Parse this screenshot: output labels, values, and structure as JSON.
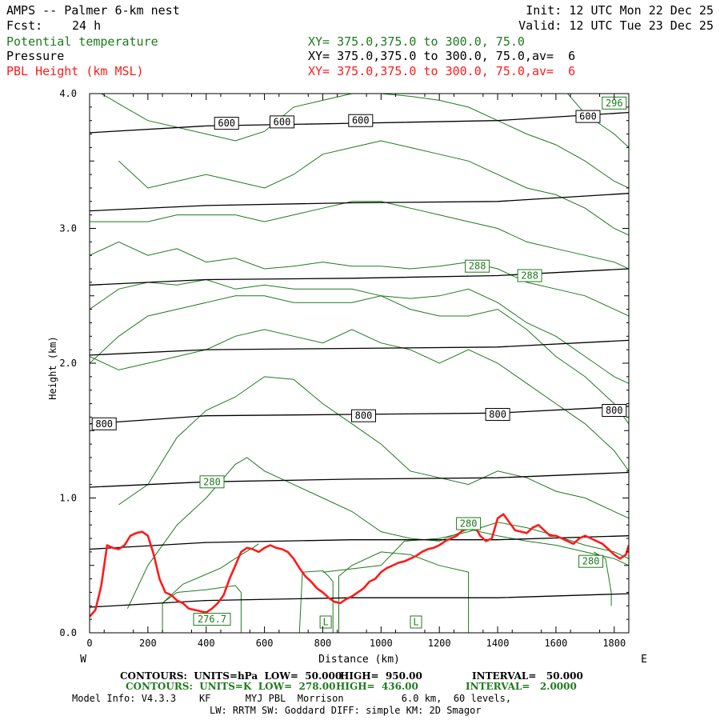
{
  "header": {
    "model": "AMPS -- Palmer 6-km nest",
    "fcst_label": "Fcst:",
    "fcst_value": "24 h",
    "init": "Init: 12 UTC Mon 22 Dec 25",
    "valid": "Valid: 12 UTC Tue 23 Dec 25",
    "field1": "Potential temperature",
    "field2": "Pressure",
    "field3": "PBL Height (km MSL)",
    "xy1": "XY= 375.0,375.0 to 300.0, 75.0",
    "xy2": "XY= 375.0,375.0 to 300.0, 75.0,av=  6",
    "xy3": "XY= 375.0,375.0 to 300.0, 75.0,av=  6"
  },
  "colors": {
    "theta": "#1e7a1e",
    "pressure": "#000000",
    "pbl": "#ff1a1a"
  },
  "chart_data": {
    "type": "line",
    "xlabel": "Distance (km)",
    "ylabel": "Height (km)",
    "xlim": [
      0,
      1850
    ],
    "ylim": [
      0,
      4.0
    ],
    "x_ticks": [
      0,
      200,
      400,
      600,
      800,
      1000,
      1200,
      1400,
      1600,
      1800
    ],
    "y_ticks": [
      0.0,
      1.0,
      2.0,
      3.0,
      4.0
    ],
    "y_tick_labels": [
      "0.0",
      "1.0",
      "2.0",
      "3.0",
      "4.0"
    ],
    "left_end": "W",
    "right_end": "E",
    "pressure_contours": [
      {
        "x": [
          0,
          400,
          900,
          1400,
          1850
        ],
        "y": [
          0.19,
          0.24,
          0.26,
          0.26,
          0.29
        ]
      },
      {
        "x": [
          0,
          400,
          900,
          1400,
          1850
        ],
        "y": [
          0.62,
          0.67,
          0.69,
          0.69,
          0.72
        ]
      },
      {
        "x": [
          0,
          400,
          900,
          1400,
          1850
        ],
        "y": [
          1.08,
          1.12,
          1.14,
          1.15,
          1.19
        ]
      },
      {
        "x": [
          0,
          400,
          900,
          1400,
          1850
        ],
        "y": [
          1.55,
          1.61,
          1.62,
          1.63,
          1.68
        ]
      },
      {
        "x": [
          0,
          400,
          900,
          1400,
          1850
        ],
        "y": [
          2.06,
          2.1,
          2.11,
          2.12,
          2.17
        ]
      },
      {
        "x": [
          0,
          400,
          900,
          1400,
          1850
        ],
        "y": [
          2.58,
          2.62,
          2.63,
          2.65,
          2.7
        ]
      },
      {
        "x": [
          0,
          400,
          900,
          1400,
          1850
        ],
        "y": [
          3.13,
          3.17,
          3.19,
          3.2,
          3.26
        ]
      },
      {
        "x": [
          0,
          400,
          900,
          1400,
          1850
        ],
        "y": [
          3.71,
          3.76,
          3.78,
          3.8,
          3.86
        ]
      }
    ],
    "theta_contours": [
      {
        "x": [
          250,
          250,
          300,
          400,
          500,
          520,
          520
        ],
        "y": [
          0.0,
          0.22,
          0.3,
          0.32,
          0.35,
          0.3,
          0.0
        ]
      },
      {
        "x": [
          720,
          730,
          800,
          820,
          835,
          835
        ],
        "y": [
          0.0,
          0.45,
          0.46,
          0.42,
          0.38,
          0.0
        ]
      },
      {
        "x": [
          1300,
          1300,
          1200,
          1100,
          1000,
          900,
          855,
          855
        ],
        "y": [
          0.0,
          0.45,
          0.5,
          0.58,
          0.6,
          0.5,
          0.42,
          0.0
        ]
      },
      {
        "x": [
          250,
          320,
          450,
          520,
          560,
          580
        ],
        "y": [
          0.22,
          0.36,
          0.48,
          0.58,
          0.63,
          0.66
        ]
      },
      {
        "x": [
          800,
          1000,
          1080,
          1200,
          1300,
          1400,
          1500,
          1600,
          1700,
          1800,
          1850
        ],
        "y": [
          0.45,
          0.5,
          0.68,
          0.7,
          0.75,
          0.82,
          0.78,
          0.72,
          0.65,
          0.6,
          0.55
        ]
      },
      {
        "x": [
          1730,
          1770,
          1790,
          1790
        ],
        "y": [
          0.6,
          0.55,
          0.3,
          0.2
        ]
      },
      {
        "x": [
          130,
          200,
          300,
          400,
          500,
          540,
          600,
          700,
          800,
          900,
          1000,
          1100,
          1200,
          1300,
          1400,
          1500,
          1600,
          1700,
          1800,
          1850
        ],
        "y": [
          0.18,
          0.5,
          0.8,
          1.0,
          1.25,
          1.3,
          1.2,
          1.1,
          1.0,
          0.9,
          0.75,
          0.7,
          0.68,
          0.77,
          0.72,
          0.68,
          0.65,
          0.6,
          0.55,
          0.5
        ]
      },
      {
        "x": [
          100,
          200,
          300,
          400,
          500,
          600,
          700,
          800,
          900,
          1000,
          1100,
          1200,
          1300,
          1400,
          1500,
          1600,
          1700,
          1800,
          1850
        ],
        "y": [
          0.95,
          1.1,
          1.45,
          1.65,
          1.75,
          1.9,
          1.88,
          1.7,
          1.55,
          1.4,
          1.2,
          1.15,
          1.1,
          1.2,
          1.15,
          1.05,
          1.0,
          0.9,
          0.85
        ]
      },
      {
        "x": [
          0,
          100,
          200,
          300,
          400,
          500,
          600,
          700,
          800,
          900,
          1000,
          1100,
          1200,
          1300,
          1400,
          1500,
          1600,
          1700,
          1800,
          1850
        ],
        "y": [
          2.05,
          1.95,
          2.0,
          2.05,
          2.1,
          2.2,
          2.25,
          2.2,
          2.15,
          2.25,
          2.15,
          2.1,
          2.0,
          2.1,
          2.0,
          1.85,
          1.7,
          1.55,
          1.35,
          1.2
        ]
      },
      {
        "x": [
          0,
          100,
          200,
          300,
          400,
          500,
          600,
          700,
          800,
          900,
          1000,
          1100,
          1200,
          1300,
          1400,
          1500,
          1600,
          1700,
          1800,
          1850
        ],
        "y": [
          2.0,
          2.2,
          2.35,
          2.4,
          2.45,
          2.5,
          2.5,
          2.45,
          2.45,
          2.45,
          2.5,
          2.4,
          2.35,
          2.35,
          2.4,
          2.25,
          2.05,
          1.9,
          1.7,
          1.55
        ]
      },
      {
        "x": [
          0,
          100,
          200,
          300,
          400,
          500,
          600,
          700,
          800,
          900,
          1000,
          1100,
          1200,
          1300,
          1400,
          1500,
          1600,
          1700,
          1800,
          1850
        ],
        "y": [
          2.4,
          2.55,
          2.6,
          2.58,
          2.62,
          2.55,
          2.58,
          2.55,
          2.55,
          2.55,
          2.5,
          2.48,
          2.5,
          2.55,
          2.45,
          2.3,
          2.2,
          2.05,
          1.9,
          1.85
        ]
      },
      {
        "x": [
          0,
          100,
          200,
          300,
          400,
          500,
          600,
          700,
          800,
          900,
          1000,
          1100,
          1200,
          1300,
          1400,
          1500,
          1600,
          1700,
          1800,
          1850
        ],
        "y": [
          2.8,
          2.9,
          2.8,
          2.85,
          2.75,
          2.78,
          2.7,
          2.72,
          2.75,
          2.72,
          2.72,
          2.7,
          2.72,
          2.75,
          2.7,
          2.6,
          2.55,
          2.5,
          2.4,
          2.35
        ]
      },
      {
        "x": [
          0,
          100,
          200,
          300,
          400,
          500,
          600,
          700,
          800,
          900,
          1000,
          1100,
          1200,
          1300,
          1400,
          1500,
          1600,
          1700,
          1800,
          1850
        ],
        "y": [
          3.05,
          3.05,
          3.05,
          3.1,
          3.1,
          3.1,
          3.05,
          3.1,
          3.15,
          3.2,
          3.2,
          3.15,
          3.1,
          3.05,
          3.0,
          2.9,
          2.85,
          2.8,
          2.75,
          2.7
        ]
      },
      {
        "x": [
          100,
          200,
          300,
          400,
          500,
          600,
          700,
          800,
          900,
          1000,
          1100,
          1200,
          1300,
          1400,
          1500,
          1600,
          1700,
          1800,
          1850
        ],
        "y": [
          3.5,
          3.3,
          3.35,
          3.4,
          3.35,
          3.3,
          3.4,
          3.55,
          3.6,
          3.65,
          3.6,
          3.55,
          3.5,
          3.4,
          3.3,
          3.25,
          3.15,
          3.0,
          2.95
        ]
      },
      {
        "x": [
          40,
          120,
          200,
          300,
          400,
          500,
          600,
          700,
          800,
          900,
          1000,
          1100,
          1200,
          1300,
          1400,
          1500,
          1600,
          1700,
          1800,
          1850
        ],
        "y": [
          4.0,
          3.9,
          3.8,
          3.75,
          3.7,
          3.65,
          3.72,
          3.9,
          3.95,
          4.0,
          4.0,
          3.98,
          3.95,
          3.9,
          3.8,
          3.7,
          3.62,
          3.5,
          3.35,
          3.3
        ]
      },
      {
        "x": [
          1640,
          1700,
          1800,
          1850
        ],
        "y": [
          4.0,
          3.85,
          3.7,
          3.6
        ]
      }
    ],
    "pbl_height": {
      "x": [
        0,
        20,
        40,
        60,
        80,
        100,
        120,
        140,
        160,
        180,
        200,
        220,
        240,
        260,
        280,
        300,
        320,
        340,
        360,
        380,
        400,
        420,
        440,
        460,
        480,
        500,
        520,
        540,
        560,
        580,
        600,
        620,
        640,
        660,
        680,
        700,
        720,
        740,
        760,
        780,
        800,
        820,
        840,
        860,
        880,
        900,
        920,
        940,
        960,
        980,
        1000,
        1020,
        1040,
        1060,
        1080,
        1100,
        1120,
        1140,
        1160,
        1180,
        1200,
        1220,
        1240,
        1260,
        1280,
        1300,
        1320,
        1340,
        1360,
        1380,
        1400,
        1420,
        1440,
        1460,
        1480,
        1500,
        1520,
        1540,
        1560,
        1580,
        1600,
        1620,
        1640,
        1660,
        1680,
        1700,
        1720,
        1740,
        1760,
        1780,
        1800,
        1820,
        1840,
        1850
      ],
      "y": [
        0.12,
        0.17,
        0.35,
        0.65,
        0.63,
        0.62,
        0.65,
        0.72,
        0.74,
        0.75,
        0.72,
        0.58,
        0.4,
        0.3,
        0.28,
        0.24,
        0.22,
        0.18,
        0.17,
        0.16,
        0.15,
        0.18,
        0.22,
        0.28,
        0.4,
        0.5,
        0.6,
        0.63,
        0.62,
        0.6,
        0.63,
        0.65,
        0.63,
        0.62,
        0.6,
        0.55,
        0.48,
        0.42,
        0.38,
        0.33,
        0.3,
        0.26,
        0.23,
        0.22,
        0.25,
        0.27,
        0.3,
        0.33,
        0.38,
        0.4,
        0.45,
        0.48,
        0.5,
        0.52,
        0.53,
        0.55,
        0.57,
        0.6,
        0.62,
        0.63,
        0.65,
        0.68,
        0.7,
        0.72,
        0.76,
        0.82,
        0.8,
        0.72,
        0.68,
        0.7,
        0.85,
        0.88,
        0.82,
        0.76,
        0.75,
        0.74,
        0.78,
        0.8,
        0.76,
        0.72,
        0.72,
        0.7,
        0.68,
        0.66,
        0.7,
        0.72,
        0.7,
        0.68,
        0.66,
        0.62,
        0.58,
        0.55,
        0.58,
        0.65
      ]
    },
    "pressure_labels": [
      {
        "text": "600",
        "x": 470,
        "y": 3.78
      },
      {
        "text": "600",
        "x": 660,
        "y": 3.79
      },
      {
        "text": "600",
        "x": 930,
        "y": 3.8
      },
      {
        "text": "600",
        "x": 1710,
        "y": 3.83
      },
      {
        "text": "800",
        "x": 50,
        "y": 1.55
      },
      {
        "text": "800",
        "x": 940,
        "y": 1.61
      },
      {
        "text": "800",
        "x": 1400,
        "y": 1.62
      },
      {
        "text": "800",
        "x": 1800,
        "y": 1.65
      }
    ],
    "theta_labels": [
      {
        "text": "296",
        "x": 1800,
        "y": 3.93
      },
      {
        "text": "288",
        "x": 1330,
        "y": 2.72
      },
      {
        "text": "288",
        "x": 1510,
        "y": 2.65
      },
      {
        "text": "280",
        "x": 420,
        "y": 1.12
      },
      {
        "text": "280",
        "x": 1300,
        "y": 0.81
      },
      {
        "text": "280",
        "x": 1720,
        "y": 0.53
      },
      {
        "text": "276.7",
        "x": 420,
        "y": 0.1
      },
      {
        "text": "L",
        "x": 810,
        "y": 0.08
      },
      {
        "text": "L",
        "x": 1120,
        "y": 0.08
      }
    ]
  },
  "footer": {
    "line1_black_a": "CONTOURS:  UNITS=hPa  LOW=  50.000",
    "line1_black_b": "HIGH=  950.00",
    "line1_black_c": "INTERVAL=   50.000",
    "line2_green_a": "CONTOURS:  UNITS=K  LOW=  278.00",
    "line2_green_b": "HIGH=  436.00",
    "line2_green_c": "INTERVAL=   2.0000",
    "line3": "Model Info: V4.3.3    KF      MYJ PBL  Morrison          6.0 km,  60 levels,",
    "line4": "LW: RRTM SW: Goddard DIFF: simple KM: 2D Smagor"
  }
}
